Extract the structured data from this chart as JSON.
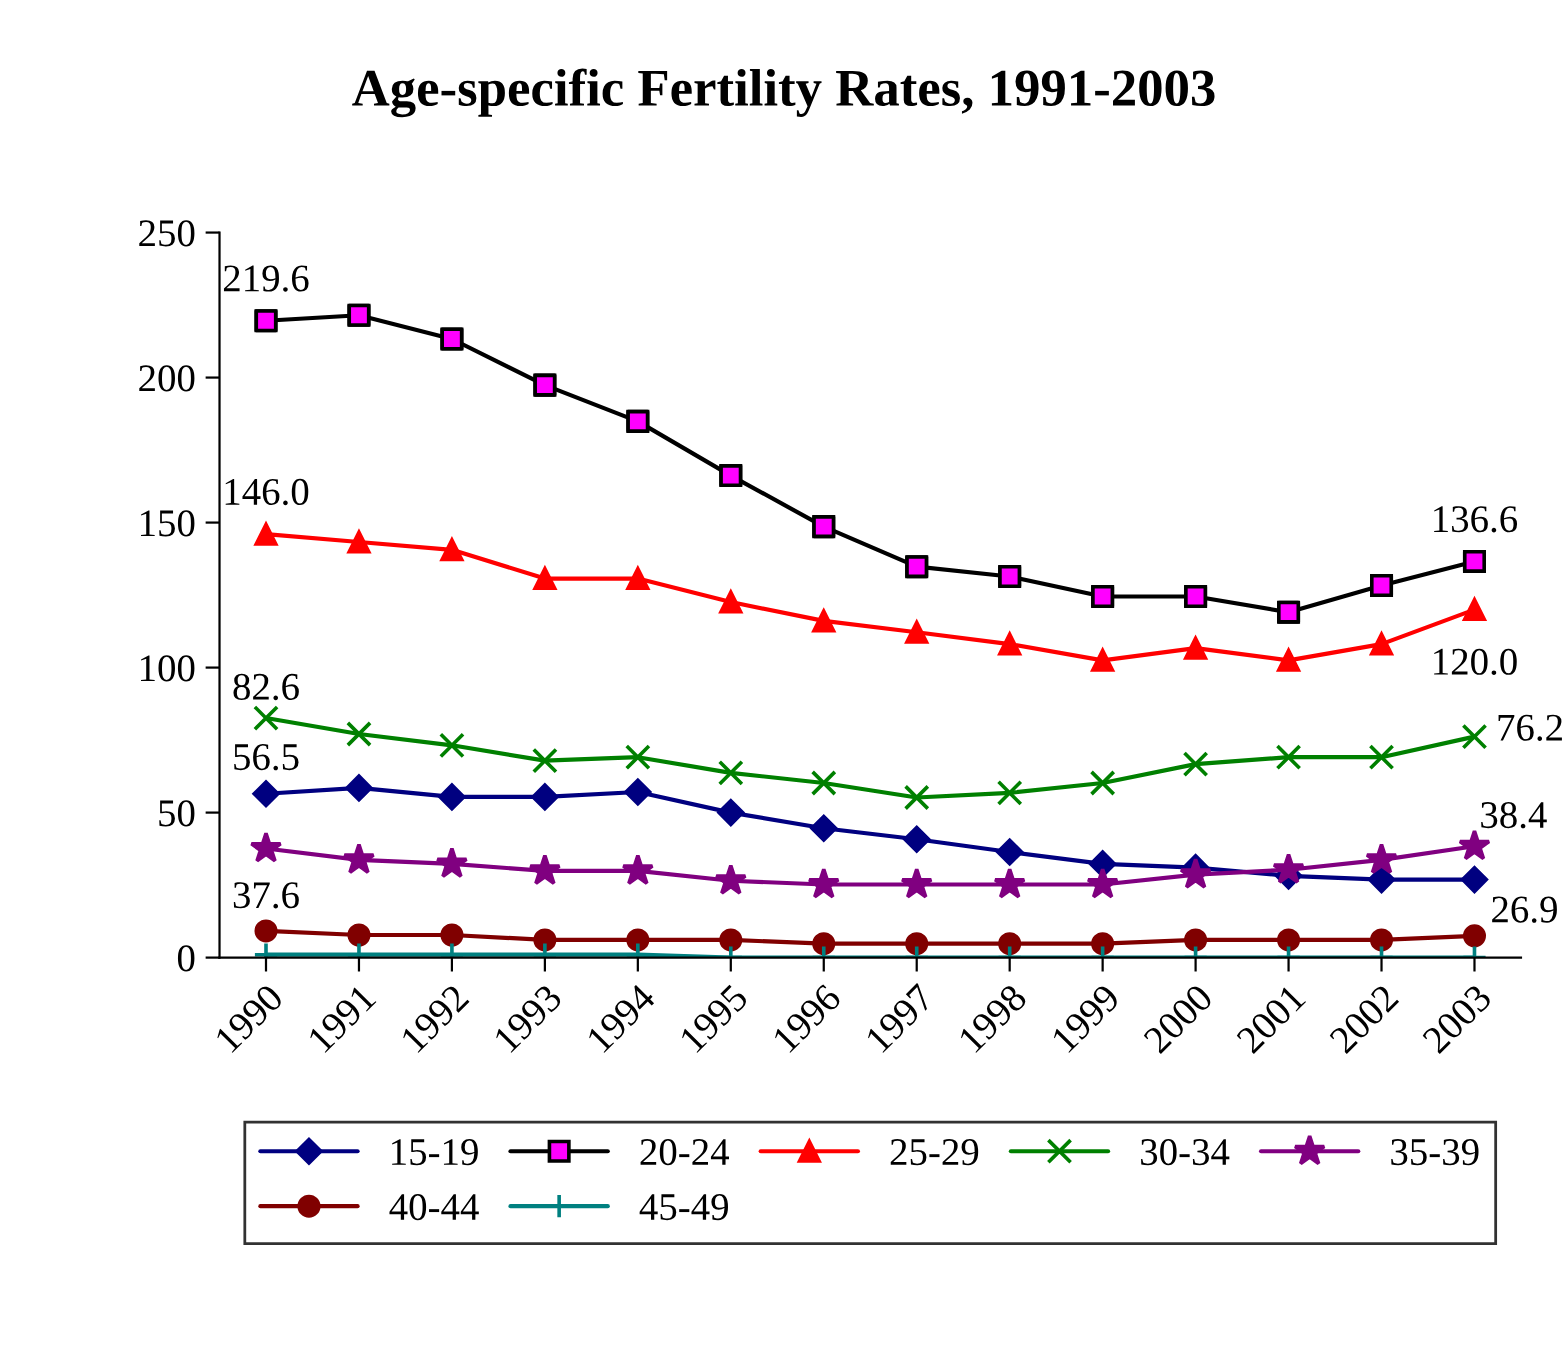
{
  "chart_data": {
    "type": "line",
    "title": "Age-specific Fertility Rates, 1991-2003",
    "categories": [
      "1990",
      "1991",
      "1992",
      "1993",
      "1994",
      "1995",
      "1996",
      "1997",
      "1998",
      "1999",
      "2000",
      "2001",
      "2002",
      "2003"
    ],
    "ylim": [
      0,
      250
    ],
    "yticks": [
      0,
      50,
      100,
      150,
      200,
      250
    ],
    "grid": false,
    "legend": "bottom",
    "series": [
      {
        "name": "15-19",
        "color": "#000080",
        "marker": "diamond",
        "values": [
          56.5,
          58.5,
          55.4,
          55.4,
          57.1,
          50,
          44.6,
          40.8,
          36.4,
          32.3,
          31.0,
          28.2,
          26.9,
          26.9
        ]
      },
      {
        "name": "20-24",
        "color": "#000000",
        "colors": [
          "#ff00ff",
          "#ff00ff",
          "#ff00ff",
          "#ff00ff",
          "#ff00ff",
          "#ff00ff",
          "#ff00ff",
          "#ff00ff",
          "#ff00ff",
          "#ff00ff",
          "#ff00ff",
          "#ff00ff",
          "#ff00ff",
          "#ff00ff"
        ],
        "marker": "square",
        "values": [
          219.6,
          221.5,
          213.3,
          197.4,
          184.9,
          166.2,
          148.6,
          134.8,
          131.4,
          124.5,
          124.5,
          119.1,
          128.3,
          136.6
        ]
      },
      {
        "name": "25-29",
        "color": "#ff0000",
        "marker": "triangle",
        "values": [
          146.0,
          143.3,
          140.6,
          130.7,
          130.7,
          122.6,
          116.1,
          112.2,
          108.1,
          102.5,
          106.7,
          102.5,
          108.1,
          120.0
        ]
      },
      {
        "name": "30-34",
        "color": "#008000",
        "marker": "cross",
        "values": [
          82.6,
          77.1,
          73.2,
          67.9,
          69.1,
          63.7,
          60.2,
          55.2,
          56.8,
          60.2,
          66.7,
          69.1,
          69.1,
          76.2
        ]
      },
      {
        "name": "35-39",
        "color": "#800080",
        "marker": "star",
        "values": [
          37.6,
          33.7,
          32.3,
          29.9,
          29.9,
          26.5,
          25.2,
          25.2,
          25.2,
          25.2,
          28.6,
          30.3,
          33.7,
          38.4
        ]
      },
      {
        "name": "40-44",
        "color": "#800000",
        "marker": "circle",
        "values": [
          9.2,
          7.8,
          7.8,
          6.1,
          6.1,
          6.1,
          4.8,
          4.8,
          4.8,
          4.8,
          6.1,
          6.1,
          6.1,
          7.5
        ]
      },
      {
        "name": "45-49",
        "color": "#008080",
        "marker": "plus",
        "values": [
          1,
          1,
          1,
          1,
          1,
          0,
          0,
          0,
          0,
          0,
          0,
          0,
          0,
          0
        ]
      }
    ],
    "annotations": [
      {
        "text": "219.6",
        "x": "1990",
        "y": 219.6
      },
      {
        "text": "146.0",
        "x": "1990",
        "y": 146.0
      },
      {
        "text": "82.6",
        "x": "1990",
        "y": 82.6
      },
      {
        "text": "56.5",
        "x": "1990",
        "y": 56.5
      },
      {
        "text": "37.6",
        "x": "1990",
        "y": 37.6
      },
      {
        "text": "136.6",
        "x": "2003",
        "y": 136.6
      },
      {
        "text": "120.0",
        "x": "2003",
        "y": 120.0
      },
      {
        "text": "76.2",
        "x": "2003",
        "y": 76.2
      },
      {
        "text": "38.4",
        "x": "2003",
        "y": 38.4
      },
      {
        "text": "26.9",
        "x": "2003",
        "y": 26.9
      }
    ]
  }
}
